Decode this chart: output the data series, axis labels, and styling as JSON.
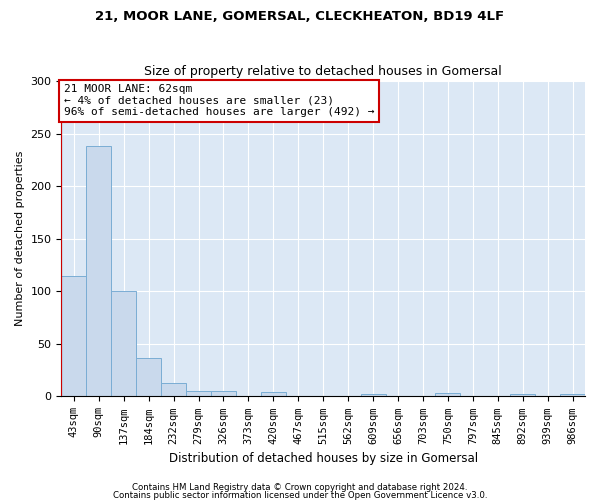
{
  "title1": "21, MOOR LANE, GOMERSAL, CLECKHEATON, BD19 4LF",
  "title2": "Size of property relative to detached houses in Gomersal",
  "xlabel": "Distribution of detached houses by size in Gomersal",
  "ylabel": "Number of detached properties",
  "footer1": "Contains HM Land Registry data © Crown copyright and database right 2024.",
  "footer2": "Contains public sector information licensed under the Open Government Licence v3.0.",
  "bar_color": "#c9d9ec",
  "bar_edge_color": "#7aadd4",
  "background_color": "#dce8f5",
  "categories": [
    "43sqm",
    "90sqm",
    "137sqm",
    "184sqm",
    "232sqm",
    "279sqm",
    "326sqm",
    "373sqm",
    "420sqm",
    "467sqm",
    "515sqm",
    "562sqm",
    "609sqm",
    "656sqm",
    "703sqm",
    "750sqm",
    "797sqm",
    "845sqm",
    "892sqm",
    "939sqm",
    "986sqm"
  ],
  "values": [
    115,
    238,
    100,
    37,
    13,
    5,
    5,
    0,
    4,
    0,
    0,
    0,
    2,
    0,
    0,
    3,
    0,
    0,
    2,
    0,
    2
  ],
  "ylim": [
    0,
    300
  ],
  "yticks": [
    0,
    50,
    100,
    150,
    200,
    250,
    300
  ],
  "property_label": "21 MOOR LANE: 62sqm",
  "annotation_line1": "← 4% of detached houses are smaller (23)",
  "annotation_line2": "96% of semi-detached houses are larger (492) →",
  "red_line_x": -0.5,
  "red_line_color": "#cc0000",
  "annotation_box_color": "#ffffff",
  "annotation_box_edge": "#cc0000"
}
